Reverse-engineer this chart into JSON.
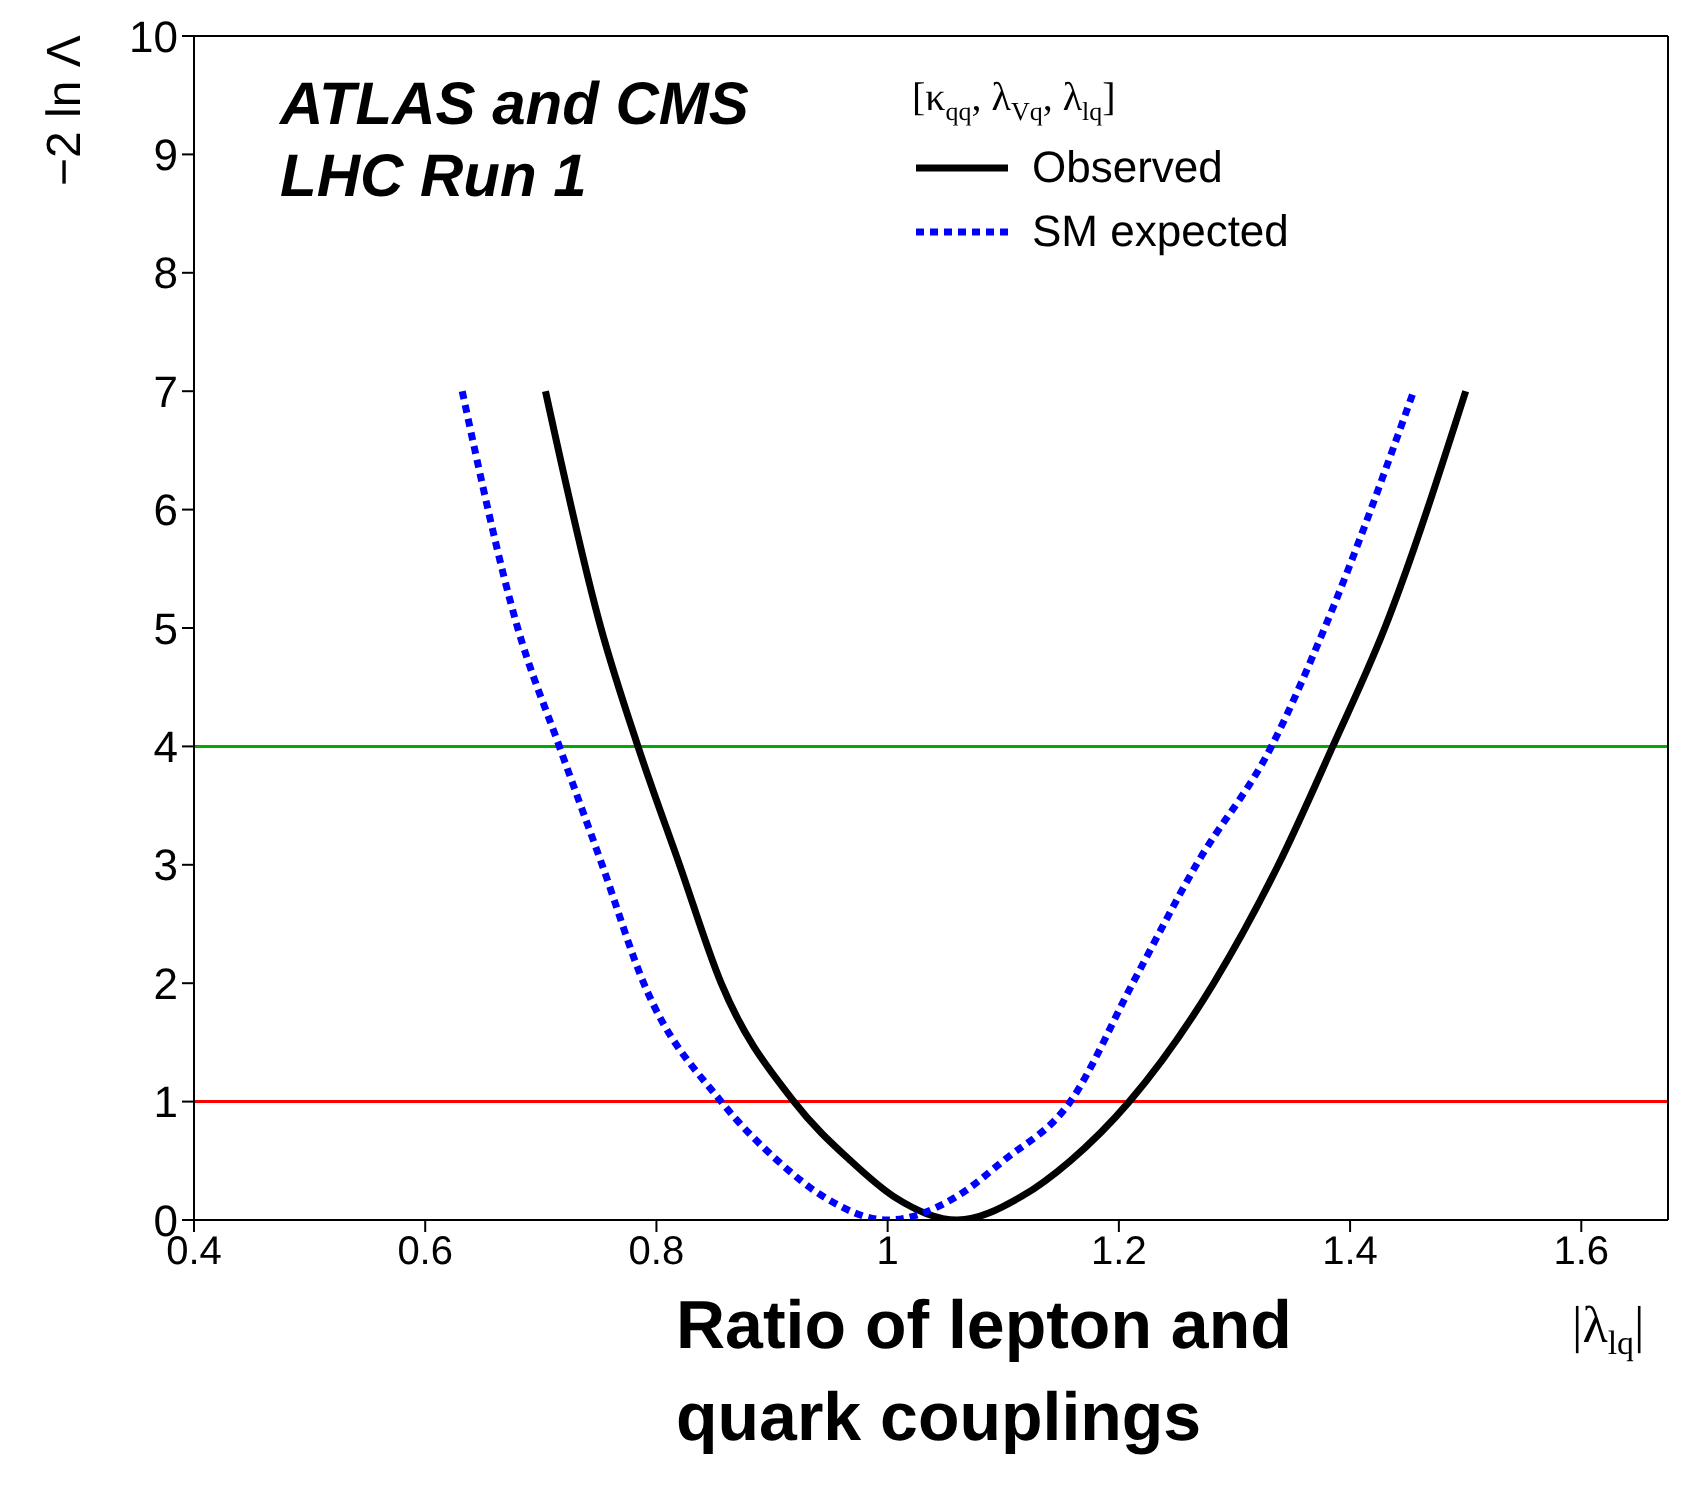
{
  "chart_data": {
    "type": "line",
    "xlabel": "|λ$_{lq}$|",
    "ylabel": "−2 ln Λ",
    "legend_title": "[κ$_{qq}$, λ$_{Vq}$, λ$_{lq}$]",
    "legend": "top right",
    "grid": false,
    "marker": "none",
    "annotations": [
      "ATLAS and CMS",
      "LHC Run 1",
      "Ratio of lepton and quark couplings"
    ],
    "xlim": [
      0.4,
      1.675
    ],
    "xticks": [
      0.4,
      0.6,
      0.8,
      1,
      1.2,
      1.4,
      1.6
    ],
    "ylim": [
      0,
      10
    ],
    "yticks": [
      0,
      1,
      2,
      3,
      4,
      5,
      6,
      7,
      8,
      9,
      10
    ],
    "series": [
      {
        "name": "Observed",
        "color": "#000000",
        "line_style": "solid",
        "x": [
          0.704,
          0.752,
          0.784,
          0.82,
          0.856,
          0.919,
          0.968,
          1.005,
          1.06,
          1.116,
          1.158,
          1.209,
          1.282,
          1.338,
          1.385,
          1.43,
          1.5
        ],
        "values": [
          7,
          5,
          4,
          3,
          2,
          1,
          0.5,
          0.2,
          0,
          0.2,
          0.5,
          1,
          2,
          3,
          4,
          5,
          7
        ]
      },
      {
        "name": "SM expected",
        "color": "#0000ff",
        "line_style": "dotted",
        "x": [
          0.632,
          0.68,
          0.716,
          0.753,
          0.789,
          0.856,
          0.905,
          0.944,
          1.0,
          1.06,
          1.1,
          1.158,
          1.212,
          1.267,
          1.332,
          1.378,
          1.455
        ],
        "values": [
          7,
          5,
          4,
          3,
          2,
          1,
          0.5,
          0.2,
          0,
          0.2,
          0.5,
          1,
          2,
          3,
          4,
          5,
          7
        ]
      }
    ],
    "ref_lines": [
      {
        "axis": "y",
        "value": 1,
        "color": "#ff0000"
      },
      {
        "axis": "y",
        "value": 4,
        "color": "#00aa00"
      }
    ]
  }
}
